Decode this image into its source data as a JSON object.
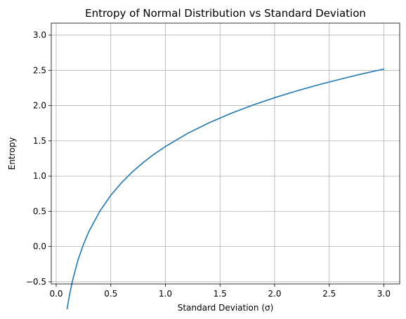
{
  "chart_data": {
    "type": "line",
    "title": "Entropy of Normal Distribution vs Standard Deviation",
    "xlabel": "Standard Deviation (σ)",
    "ylabel": "Entropy",
    "xlim": [
      -0.045,
      3.145
    ],
    "ylim": [
      -0.5306,
      3.1695
    ],
    "xticks": [
      0.0,
      0.5,
      1.0,
      1.5,
      2.0,
      2.5,
      3.0
    ],
    "xtick_labels": [
      "0.0",
      "0.5",
      "1.0",
      "1.5",
      "2.0",
      "2.5",
      "3.0"
    ],
    "yticks": [
      -0.5,
      0.0,
      0.5,
      1.0,
      1.5,
      2.0,
      2.5,
      3.0
    ],
    "ytick_labels": [
      "−0.5",
      "0.0",
      "0.5",
      "1.0",
      "1.5",
      "2.0",
      "2.5",
      "3.0"
    ],
    "grid": true,
    "series": [
      {
        "color": "#1f77b4",
        "x": [
          0.1,
          0.12,
          0.15,
          0.2,
          0.25,
          0.3,
          0.4,
          0.5,
          0.6,
          0.7,
          0.8,
          0.9,
          1.0,
          1.2,
          1.4,
          1.6,
          1.8,
          2.0,
          2.2,
          2.4,
          2.6,
          2.8,
          3.0
        ],
        "y": [
          -0.884,
          -0.702,
          -0.479,
          -0.19,
          0.033,
          0.216,
          0.503,
          0.726,
          0.909,
          1.063,
          1.196,
          1.314,
          1.419,
          1.602,
          1.756,
          1.889,
          2.007,
          2.112,
          2.207,
          2.294,
          2.374,
          2.449,
          2.518
        ]
      }
    ]
  }
}
